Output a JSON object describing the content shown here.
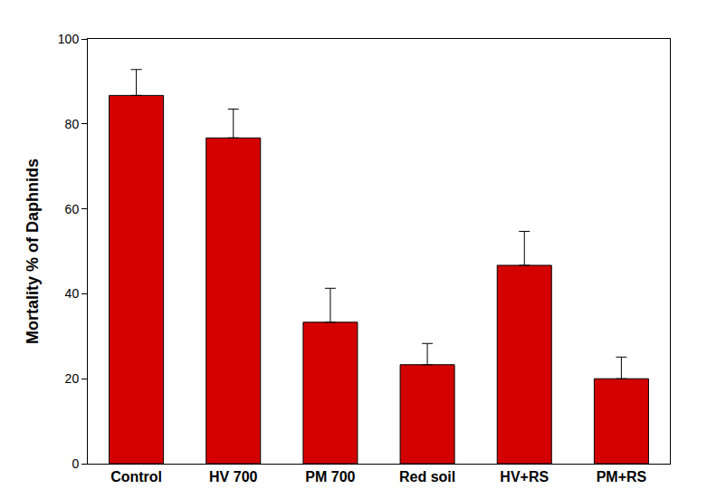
{
  "chart_data": {
    "type": "bar",
    "y_label": "Mortality % of Daphnids",
    "categories": [
      "Control",
      "HV 700",
      "PM 700",
      "Red soil",
      "HV+RS",
      "PM+RS"
    ],
    "values": [
      86.7,
      76.7,
      33.3,
      23.3,
      46.7,
      20.0
    ],
    "errors": [
      6.1,
      6.8,
      8.0,
      5.0,
      8.0,
      5.1
    ],
    "color": "#d40000",
    "ylim": [
      0,
      100
    ],
    "yticks": [
      0,
      20,
      40,
      60,
      80,
      100
    ],
    "grid": false
  }
}
